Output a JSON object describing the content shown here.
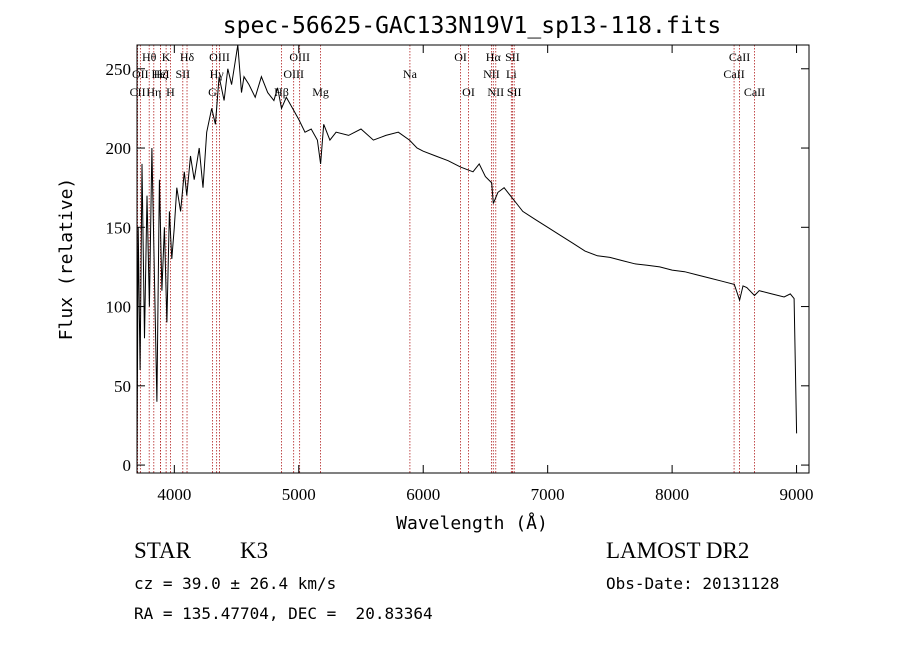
{
  "chart_data": {
    "type": "line",
    "title": "spec-56625-GAC133N19V1_sp13-118.fits",
    "xlabel": "Wavelength (Å)",
    "ylabel": "Flux (relative)",
    "xlim": [
      3700,
      9100
    ],
    "ylim": [
      -5,
      265
    ],
    "x_ticks": [
      4000,
      5000,
      6000,
      7000,
      8000,
      9000
    ],
    "y_ticks": [
      0,
      50,
      100,
      150,
      200,
      250
    ],
    "grid": false,
    "legend": "none",
    "series": [
      {
        "x": [
          3700,
          3710,
          3725,
          3740,
          3760,
          3780,
          3800,
          3820,
          3840,
          3860,
          3880,
          3900,
          3920,
          3940,
          3960,
          3980,
          4000,
          4020,
          4050,
          4080,
          4100,
          4130,
          4160,
          4200,
          4230,
          4260,
          4300,
          4330,
          4360,
          4400,
          4430,
          4460,
          4490,
          4510,
          4540,
          4560,
          4600,
          4650,
          4700,
          4750,
          4800,
          4830,
          4861,
          4900,
          4950,
          5000,
          5050,
          5100,
          5150,
          5175,
          5200,
          5250,
          5300,
          5400,
          5500,
          5600,
          5700,
          5800,
          5890,
          5950,
          6000,
          6100,
          6200,
          6300,
          6400,
          6450,
          6500,
          6550,
          6563,
          6600,
          6650,
          6700,
          6750,
          6800,
          6900,
          7000,
          7100,
          7200,
          7300,
          7400,
          7500,
          7600,
          7700,
          7800,
          7900,
          8000,
          8100,
          8200,
          8300,
          8400,
          8500,
          8542,
          8570,
          8600,
          8662,
          8700,
          8800,
          8900,
          8950,
          8980,
          9000
        ],
        "values": [
          2,
          150,
          60,
          190,
          80,
          170,
          100,
          200,
          120,
          40,
          180,
          110,
          150,
          90,
          160,
          130,
          150,
          175,
          160,
          185,
          170,
          195,
          180,
          200,
          175,
          210,
          225,
          215,
          245,
          230,
          250,
          240,
          255,
          265,
          235,
          245,
          240,
          232,
          245,
          235,
          230,
          238,
          225,
          232,
          225,
          218,
          210,
          212,
          205,
          190,
          215,
          205,
          210,
          208,
          212,
          205,
          208,
          210,
          205,
          200,
          198,
          195,
          192,
          188,
          185,
          190,
          182,
          178,
          165,
          172,
          175,
          170,
          165,
          160,
          155,
          150,
          145,
          140,
          135,
          132,
          131,
          129,
          127,
          126,
          125,
          123,
          122,
          120,
          118,
          116,
          114,
          104,
          113,
          112,
          107,
          110,
          108,
          106,
          108,
          105,
          20
        ]
      }
    ],
    "lines": [
      {
        "name": "Hθ",
        "wavelength": 3798,
        "row": 0
      },
      {
        "name": "OII",
        "wavelength": 3727,
        "row": 1
      },
      {
        "name": "CII",
        "wavelength": 3705,
        "row": 2
      },
      {
        "name": "Hη",
        "wavelength": 3835,
        "row": 2
      },
      {
        "name": "Hζ",
        "wavelength": 3889,
        "row": 1
      },
      {
        "name": "K",
        "wavelength": 3934,
        "row": 0
      },
      {
        "name": "HeI",
        "wavelength": 3889,
        "row": 1
      },
      {
        "name": "H",
        "wavelength": 3969,
        "row": 2
      },
      {
        "name": "Hδ",
        "wavelength": 4102,
        "row": 0
      },
      {
        "name": "SII",
        "wavelength": 4068,
        "row": 1
      },
      {
        "name": "OIII",
        "wavelength": 4363,
        "row": 0
      },
      {
        "name": "Hγ",
        "wavelength": 4340,
        "row": 1
      },
      {
        "name": "G",
        "wavelength": 4306,
        "row": 2
      },
      {
        "name": "OIII",
        "wavelength": 5007,
        "row": 0
      },
      {
        "name": "OIII",
        "wavelength": 4959,
        "row": 1
      },
      {
        "name": "Hβ",
        "wavelength": 4861,
        "row": 2
      },
      {
        "name": "Mg",
        "wavelength": 5175,
        "row": 2
      },
      {
        "name": "Na",
        "wavelength": 5893,
        "row": 1
      },
      {
        "name": "OI",
        "wavelength": 6300,
        "row": 0
      },
      {
        "name": "OI",
        "wavelength": 6364,
        "row": 2
      },
      {
        "name": "Hα",
        "wavelength": 6563,
        "row": 0
      },
      {
        "name": "NII",
        "wavelength": 6548,
        "row": 1
      },
      {
        "name": "SII",
        "wavelength": 6717,
        "row": 0
      },
      {
        "name": "Li",
        "wavelength": 6708,
        "row": 1
      },
      {
        "name": "NII",
        "wavelength": 6583,
        "row": 2
      },
      {
        "name": "SII",
        "wavelength": 6731,
        "row": 2
      },
      {
        "name": "CaII",
        "wavelength": 8542,
        "row": 0
      },
      {
        "name": "CaII",
        "wavelength": 8498,
        "row": 1
      },
      {
        "name": "CaII",
        "wavelength": 8662,
        "row": 2
      }
    ]
  },
  "info": {
    "object_type": "STAR",
    "subclass": "K3",
    "survey": "LAMOST DR2",
    "velocity": "cz = 39.0 ± 26.4 km/s",
    "obs_date": "Obs-Date: 20131128",
    "coords": "RA = 135.47704, DEC =  20.83364"
  },
  "colors": {
    "line_marker": "#b22222",
    "spectrum": "#000000",
    "axes": "#000000"
  }
}
